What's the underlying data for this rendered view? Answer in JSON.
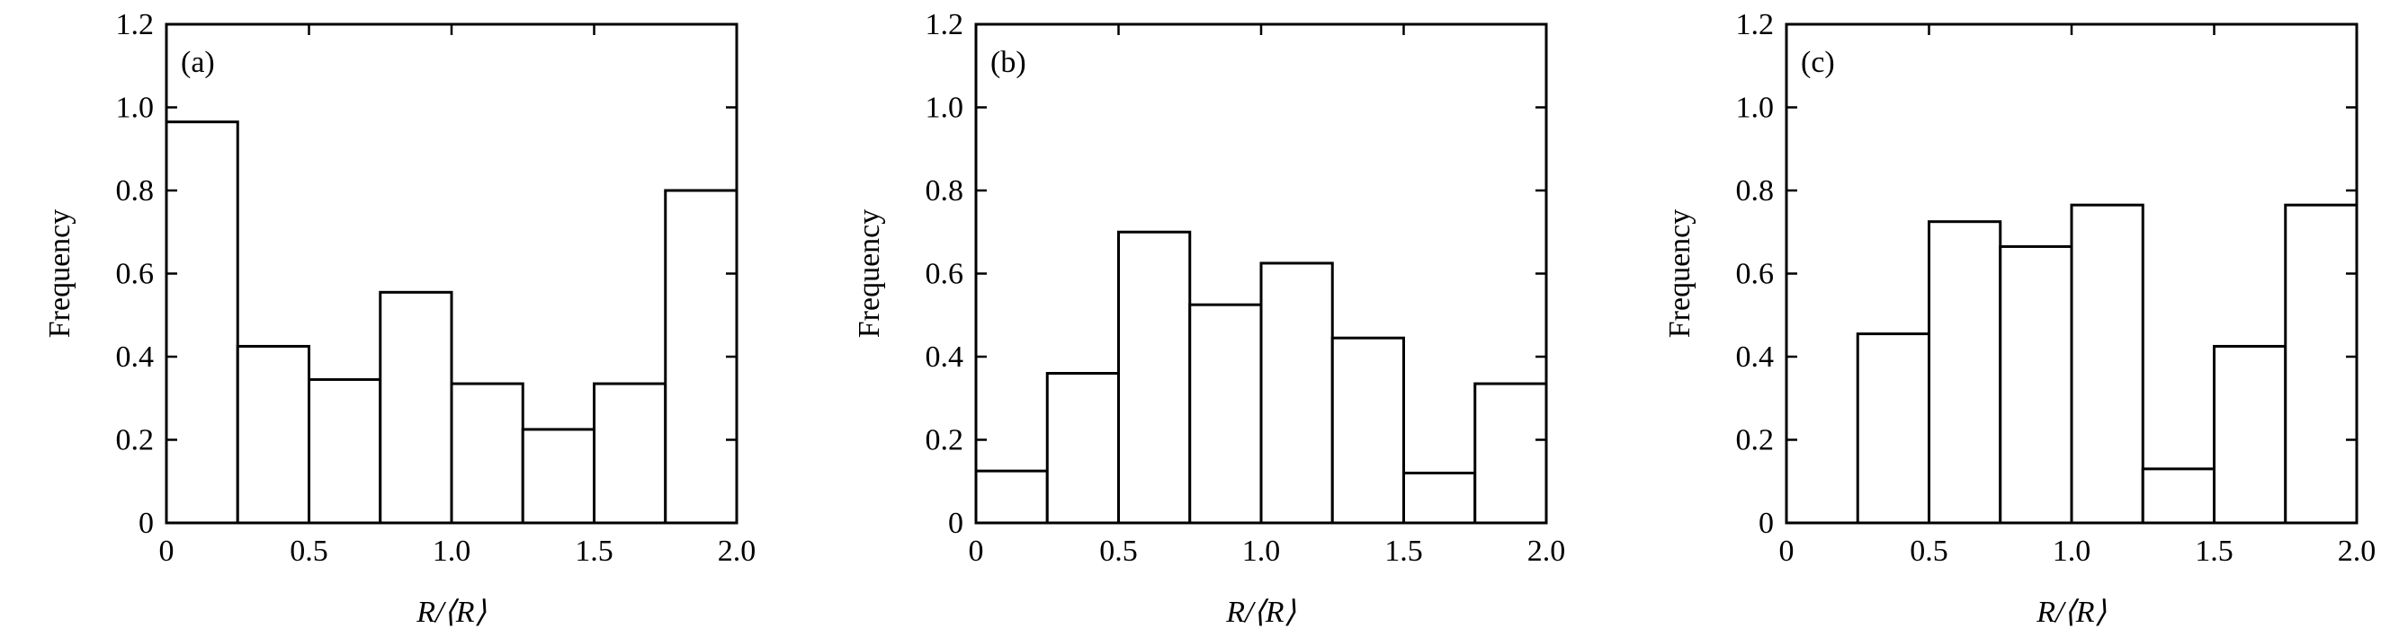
{
  "chart_data": [
    {
      "type": "histogram",
      "panel_label": "(a)",
      "xlabel": "R/⟨R⟩",
      "ylabel": "Frequency",
      "color": "#ffffff",
      "bins": [
        0,
        0.25,
        0.5,
        0.75,
        1,
        1.25,
        1.5,
        1.75,
        2
      ],
      "values": [
        0.965,
        0.425,
        0.345,
        0.555,
        0.335,
        0.225,
        0.335,
        0.8
      ],
      "xlim": [
        0,
        2
      ],
      "xticks": [
        0,
        0.5,
        {
          "value": 1,
          "label": "1.0"
        },
        1.5,
        {
          "value": 2,
          "label": "2.0"
        }
      ],
      "ylim": [
        0,
        1.2
      ],
      "yticks": [
        0,
        0.2,
        0.4,
        0.6,
        0.8,
        {
          "value": 1,
          "label": "1.0"
        },
        1.2
      ]
    },
    {
      "type": "histogram",
      "panel_label": "(b)",
      "xlabel": "R/⟨R⟩",
      "ylabel": "Frequency",
      "color": "#ffffff",
      "bins": [
        0,
        0.25,
        0.5,
        0.75,
        1,
        1.25,
        1.5,
        1.75,
        2
      ],
      "values": [
        0.125,
        0.36,
        0.7,
        0.525,
        0.625,
        0.445,
        0.12,
        0.335
      ],
      "xlim": [
        0,
        2
      ],
      "xticks": [
        0,
        0.5,
        {
          "value": 1,
          "label": "1.0"
        },
        1.5,
        {
          "value": 2,
          "label": "2.0"
        }
      ],
      "ylim": [
        0,
        1.2
      ],
      "yticks": [
        0,
        0.2,
        0.4,
        0.6,
        0.8,
        {
          "value": 1,
          "label": "1.0"
        },
        1.2
      ]
    },
    {
      "type": "histogram",
      "panel_label": "(c)",
      "xlabel": "R/⟨R⟩",
      "ylabel": "Frequency",
      "color": "#ffffff",
      "bins": [
        0,
        0.25,
        0.5,
        0.75,
        1,
        1.25,
        1.5,
        1.75,
        2
      ],
      "values": [
        0,
        0.455,
        0.725,
        0.665,
        0.765,
        0.13,
        0.425,
        0.765
      ],
      "xlim": [
        0,
        2
      ],
      "xticks": [
        0,
        0.5,
        {
          "value": 1,
          "label": "1.0"
        },
        1.5,
        {
          "value": 2,
          "label": "2.0"
        }
      ],
      "ylim": [
        0,
        1.2
      ],
      "yticks": [
        0,
        0.2,
        0.4,
        0.6,
        0.8,
        {
          "value": 1,
          "label": "1.0"
        },
        1.2
      ]
    }
  ]
}
